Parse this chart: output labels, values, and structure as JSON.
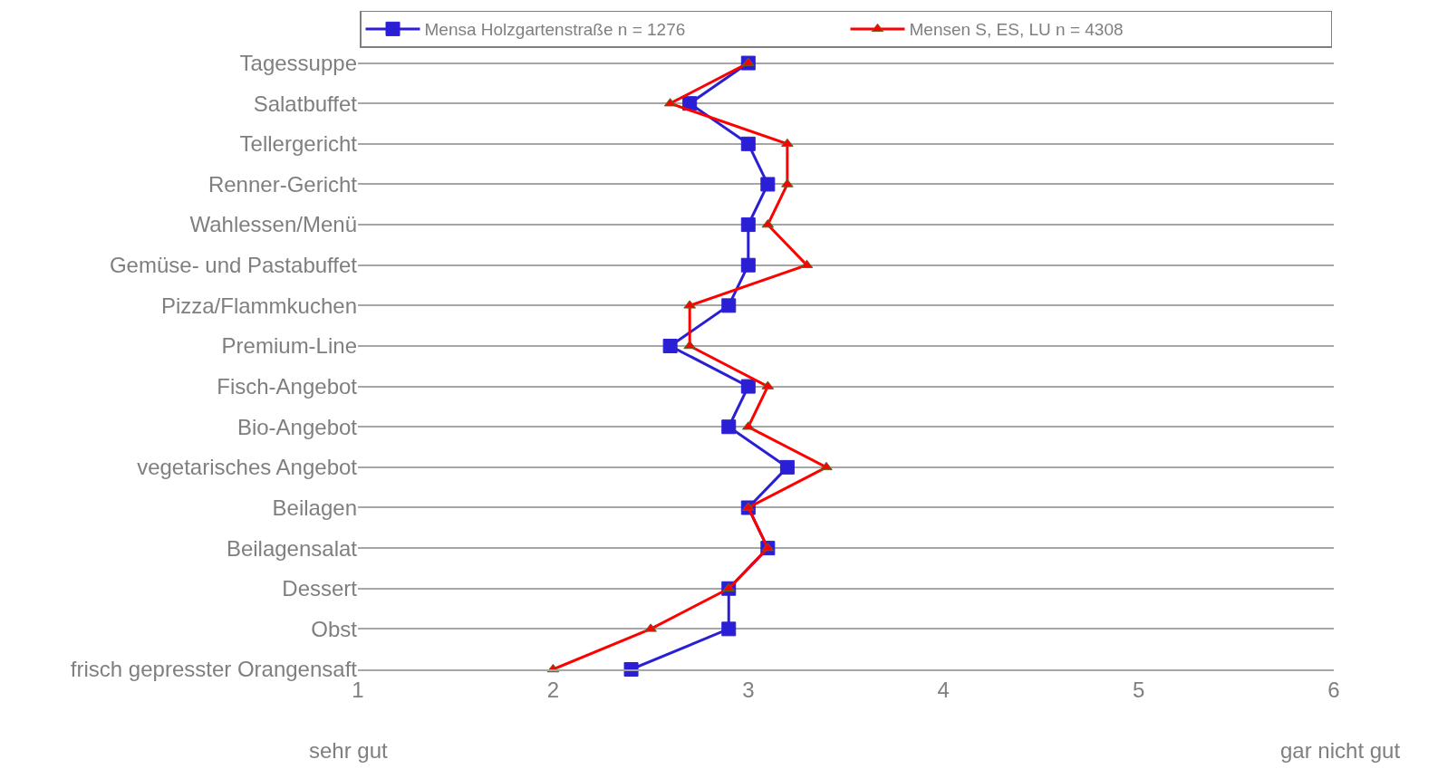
{
  "chart_data": {
    "type": "line",
    "orientation": "horizontal",
    "categories": [
      "Tagessuppe",
      "Salatbuffet",
      "Tellergericht",
      "Renner-Gericht",
      "Wahlessen/Menü",
      "Gemüse- und Pastabuffet",
      "Pizza/Flammkuchen",
      "Premium-Line",
      "Fisch-Angebot",
      "Bio-Angebot",
      "vegetarisches Angebot",
      "Beilagen",
      "Beilagensalat",
      "Dessert",
      "Obst",
      "frisch gepresster Orangensaft"
    ],
    "series": [
      {
        "name": "Mensa Holzgartenstraße n = 1276",
        "color": "#2b1fd6",
        "marker": "square",
        "values": [
          3.0,
          2.7,
          3.0,
          3.1,
          3.0,
          3.0,
          2.9,
          2.6,
          3.0,
          2.9,
          3.2,
          3.0,
          3.1,
          2.9,
          2.9,
          2.4
        ]
      },
      {
        "name": "Mensen S, ES, LU n = 4308",
        "color": "#ff0000",
        "marker": "triangle",
        "values": [
          3.0,
          2.6,
          3.2,
          3.2,
          3.1,
          3.3,
          2.7,
          2.7,
          3.1,
          3.0,
          3.4,
          3.0,
          3.1,
          2.9,
          2.5,
          2.0
        ]
      }
    ],
    "xlim": [
      1,
      6
    ],
    "xticks": [
      1,
      2,
      3,
      4,
      5,
      6
    ],
    "grid": "y",
    "legend": "top",
    "annotations": [
      "sehr gut",
      "gar nicht gut"
    ]
  }
}
